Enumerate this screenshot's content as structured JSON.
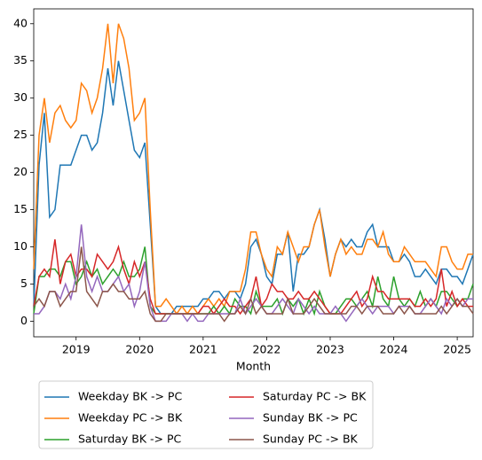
{
  "chart_data": {
    "type": "line",
    "xlabel": "Month",
    "x": [
      2018.333,
      2018.417,
      2018.5,
      2018.583,
      2018.667,
      2018.75,
      2018.833,
      2018.917,
      2019,
      2019.083,
      2019.167,
      2019.25,
      2019.333,
      2019.417,
      2019.5,
      2019.583,
      2019.667,
      2019.75,
      2019.833,
      2019.917,
      2020,
      2020.083,
      2020.167,
      2020.25,
      2020.333,
      2020.417,
      2020.5,
      2020.583,
      2020.667,
      2020.75,
      2020.833,
      2020.917,
      2021,
      2021.083,
      2021.167,
      2021.25,
      2021.333,
      2021.417,
      2021.5,
      2021.583,
      2021.667,
      2021.75,
      2021.833,
      2021.917,
      2022,
      2022.083,
      2022.167,
      2022.25,
      2022.333,
      2022.417,
      2022.5,
      2022.583,
      2022.667,
      2022.75,
      2022.833,
      2022.917,
      2023,
      2023.083,
      2023.167,
      2023.25,
      2023.333,
      2023.417,
      2023.5,
      2023.583,
      2023.667,
      2023.75,
      2023.833,
      2023.917,
      2024,
      2024.083,
      2024.167,
      2024.25,
      2024.333,
      2024.417,
      2024.5,
      2024.583,
      2024.667,
      2024.75,
      2024.833,
      2024.917,
      2025,
      2025.083,
      2025.167,
      2025.25
    ],
    "series": [
      {
        "name": "Weekday BK -> PC",
        "color": "#1f77b4",
        "values": [
          2,
          21,
          28,
          14,
          15,
          21,
          21,
          21,
          23,
          25,
          25,
          23,
          24,
          28,
          34,
          29,
          35,
          31,
          27,
          23,
          22,
          24,
          13,
          2,
          1,
          1,
          1,
          2,
          2,
          2,
          2,
          2,
          3,
          3,
          4,
          4,
          3,
          4,
          4,
          3,
          5,
          10,
          11,
          9,
          6,
          5,
          9,
          9,
          12,
          4,
          9,
          9,
          10,
          13,
          15,
          11,
          6,
          9,
          11,
          10,
          11,
          10,
          10,
          12,
          13,
          10,
          10,
          10,
          8,
          8,
          9,
          8,
          6,
          6,
          7,
          6,
          5,
          7,
          7,
          6,
          6,
          5,
          7,
          9
        ]
      },
      {
        "name": "Weekday PC -> BK",
        "color": "#ff7f0e",
        "values": [
          7,
          25,
          30,
          24,
          28,
          29,
          27,
          26,
          27,
          32,
          31,
          28,
          30,
          34,
          40,
          32,
          40,
          38,
          34,
          27,
          28,
          30,
          15,
          2,
          2,
          3,
          2,
          1,
          2,
          1,
          2,
          1,
          2,
          3,
          2,
          3,
          2,
          4,
          4,
          4,
          7,
          12,
          12,
          9,
          7,
          6,
          10,
          9,
          12,
          10,
          8,
          10,
          10,
          13,
          15,
          10,
          6,
          9,
          11,
          9,
          10,
          9,
          9,
          11,
          11,
          10,
          12,
          9,
          8,
          8,
          10,
          9,
          8,
          8,
          8,
          7,
          6,
          10,
          10,
          8,
          7,
          7,
          9,
          9
        ]
      },
      {
        "name": "Saturday BK -> PC",
        "color": "#2ca02c",
        "values": [
          1,
          6,
          6,
          7,
          7,
          6,
          8,
          8,
          5,
          6,
          8,
          6,
          7,
          5,
          6,
          7,
          6,
          8,
          6,
          6,
          7,
          10,
          2,
          1,
          1,
          1,
          1,
          1,
          1,
          1,
          1,
          1,
          1,
          1,
          2,
          1,
          2,
          1,
          3,
          2,
          2,
          1,
          4,
          2,
          2,
          2,
          3,
          1,
          3,
          2,
          3,
          1,
          3,
          1,
          4,
          2,
          1,
          1,
          2,
          3,
          3,
          2,
          3,
          4,
          2,
          6,
          3,
          2,
          6,
          3,
          2,
          3,
          2,
          4,
          2,
          3,
          2,
          4,
          4,
          3,
          2,
          3,
          3,
          5
        ]
      },
      {
        "name": "Saturday PC -> BK",
        "color": "#d62728",
        "values": [
          2,
          6,
          7,
          6,
          11,
          5,
          8,
          9,
          6,
          7,
          7,
          6,
          9,
          8,
          7,
          8,
          10,
          7,
          5,
          8,
          6,
          8,
          3,
          1,
          1,
          1,
          1,
          1,
          1,
          1,
          1,
          1,
          2,
          2,
          1,
          2,
          3,
          2,
          2,
          1,
          2,
          3,
          6,
          2,
          3,
          5,
          4,
          4,
          3,
          3,
          4,
          3,
          3,
          4,
          3,
          2,
          1,
          1,
          1,
          2,
          3,
          4,
          2,
          3,
          6,
          4,
          4,
          3,
          3,
          3,
          3,
          3,
          2,
          2,
          3,
          2,
          3,
          7,
          2,
          4,
          2,
          3,
          2,
          2
        ]
      },
      {
        "name": "Sunday BK -> PC",
        "color": "#9467bd",
        "values": [
          1,
          1,
          2,
          4,
          4,
          3,
          5,
          3,
          6,
          13,
          6,
          4,
          6,
          4,
          4,
          5,
          6,
          4,
          5,
          2,
          4,
          8,
          2,
          0,
          0,
          0,
          1,
          1,
          1,
          0,
          1,
          0,
          0,
          1,
          1,
          1,
          1,
          1,
          1,
          3,
          1,
          2,
          3,
          2,
          1,
          1,
          2,
          3,
          2,
          1,
          3,
          2,
          1,
          2,
          1,
          1,
          1,
          2,
          1,
          0,
          1,
          2,
          3,
          2,
          1,
          2,
          2,
          2,
          1,
          2,
          2,
          2,
          1,
          1,
          2,
          3,
          2,
          1,
          3,
          2,
          3,
          2,
          3,
          3
        ]
      },
      {
        "name": "Sunday PC -> BK",
        "color": "#8c564b",
        "values": [
          2,
          3,
          2,
          4,
          4,
          2,
          3,
          4,
          4,
          10,
          4,
          3,
          2,
          4,
          4,
          5,
          4,
          4,
          3,
          3,
          3,
          4,
          1,
          0,
          0,
          1,
          1,
          1,
          1,
          1,
          1,
          1,
          1,
          1,
          1,
          1,
          0,
          1,
          1,
          2,
          1,
          3,
          1,
          2,
          1,
          1,
          1,
          1,
          3,
          1,
          1,
          1,
          2,
          3,
          2,
          1,
          1,
          1,
          1,
          1,
          2,
          2,
          1,
          2,
          2,
          2,
          1,
          1,
          1,
          2,
          1,
          2,
          1,
          1,
          1,
          1,
          1,
          2,
          1,
          2,
          3,
          2,
          2,
          1
        ]
      }
    ],
    "xlim": [
      2018.333,
      2025.25
    ],
    "xticks": [
      2019,
      2020,
      2021,
      2022,
      2023,
      2024,
      2025
    ],
    "ylim": [
      -2.1,
      42
    ],
    "yticks": [
      0,
      5,
      10,
      15,
      20,
      25,
      30,
      35,
      40
    ],
    "legend": "below"
  }
}
